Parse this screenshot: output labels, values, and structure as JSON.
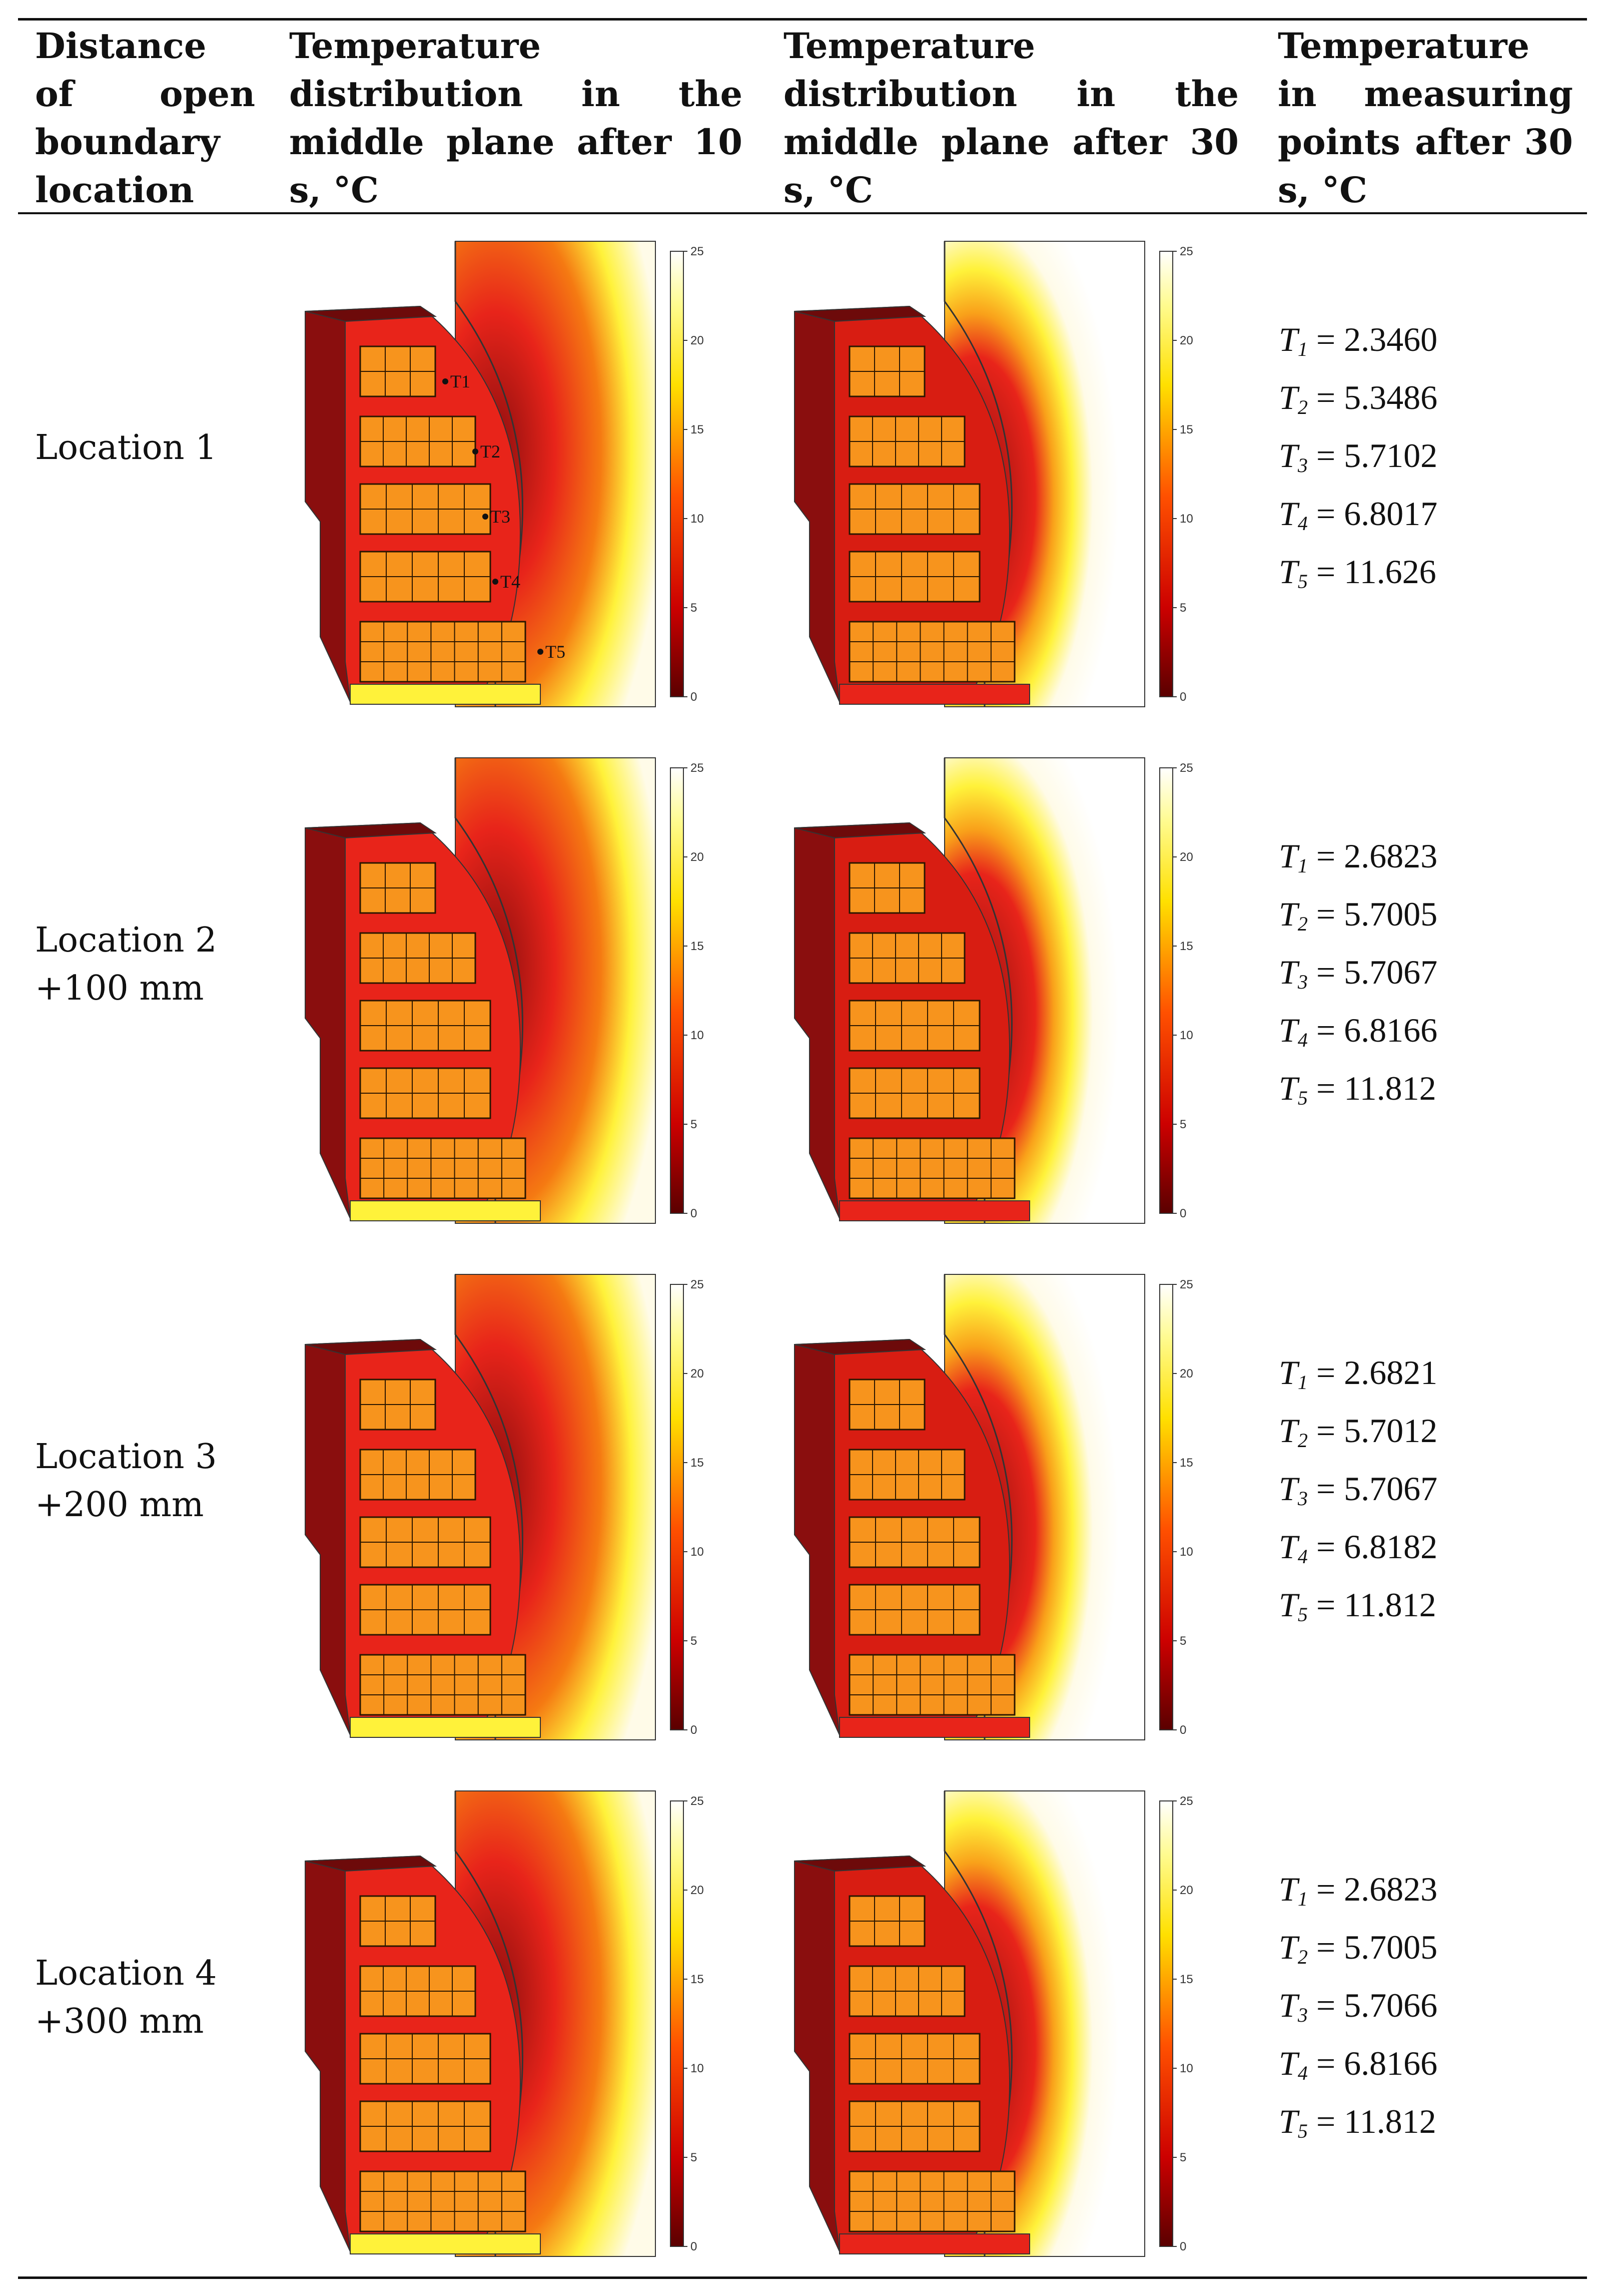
{
  "header": {
    "col1": "Distance of open boundary location",
    "col2": "Temperature distribution in the middle plane after 10 s, °C",
    "col3": "Temperature distribution in the middle plane after 30 s, °C",
    "col4": "Temperature in measuring points after 30 s, °C"
  },
  "colorbar": {
    "ticks": [
      "0",
      "5",
      "10",
      "15",
      "20",
      "25"
    ]
  },
  "probe_labels": [
    "T1",
    "T2",
    "T3",
    "T4",
    "T5"
  ],
  "rows": [
    {
      "location": "Location 1",
      "offset": "",
      "temps": [
        {
          "sym": "T",
          "sub": "1",
          "value": "= 2.3460"
        },
        {
          "sym": "T",
          "sub": "2",
          "value": "= 5.3486"
        },
        {
          "sym": "T",
          "sub": "3",
          "value": "= 5.7102"
        },
        {
          "sym": "T",
          "sub": "4",
          "value": "= 6.8017"
        },
        {
          "sym": "T",
          "sub": "5",
          "value": "= 11.626"
        }
      ]
    },
    {
      "location": "Location 2",
      "offset": "+100 mm",
      "temps": [
        {
          "sym": "T",
          "sub": "1",
          "value": "= 2.6823"
        },
        {
          "sym": "T",
          "sub": "2",
          "value": "= 5.7005"
        },
        {
          "sym": "T",
          "sub": "3",
          "value": "= 5.7067"
        },
        {
          "sym": "T",
          "sub": "4",
          "value": "= 6.8166"
        },
        {
          "sym": "T",
          "sub": "5",
          "value": "= 11.812"
        }
      ]
    },
    {
      "location": "Location 3",
      "offset": "+200 mm",
      "temps": [
        {
          "sym": "T",
          "sub": "1",
          "value": "= 2.6821"
        },
        {
          "sym": "T",
          "sub": "2",
          "value": "= 5.7012"
        },
        {
          "sym": "T",
          "sub": "3",
          "value": "= 5.7067"
        },
        {
          "sym": "T",
          "sub": "4",
          "value": "= 6.8182"
        },
        {
          "sym": "T",
          "sub": "5",
          "value": "= 11.812"
        }
      ]
    },
    {
      "location": "Location 4",
      "offset": "+300 mm",
      "temps": [
        {
          "sym": "T",
          "sub": "1",
          "value": "= 2.6823"
        },
        {
          "sym": "T",
          "sub": "2",
          "value": "= 5.7005"
        },
        {
          "sym": "T",
          "sub": "3",
          "value": "= 5.7066"
        },
        {
          "sym": "T",
          "sub": "4",
          "value": "= 6.8166"
        },
        {
          "sym": "T",
          "sub": "5",
          "value": "= 11.812"
        }
      ]
    }
  ],
  "colors": {
    "dark_red": "#8a0e0e",
    "red": "#e8241a",
    "orange_box": "#f7941d",
    "yellow": "#fff23a",
    "white_hot": "#fffbe8"
  }
}
